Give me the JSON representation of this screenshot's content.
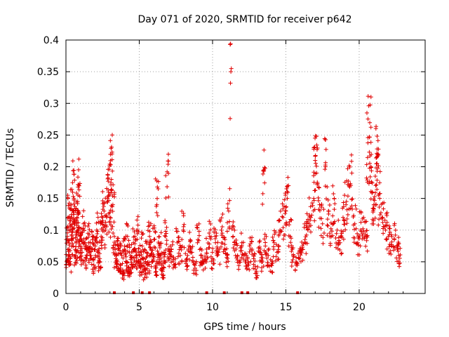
{
  "chart_data": {
    "type": "scatter",
    "title": "Day 071 of 2020, SRMTID for receiver p642",
    "xlabel": "GPS time / hours",
    "ylabel": "SRMTID / TECUs",
    "xlim": [
      0,
      24.5
    ],
    "ylim": [
      0,
      0.4
    ],
    "x_ticks": [
      0,
      5,
      10,
      15,
      20
    ],
    "x_tick_labels": [
      "0",
      "5",
      "10",
      "15",
      "20"
    ],
    "y_ticks": [
      0,
      0.05,
      0.1,
      0.15,
      0.2,
      0.25,
      0.3,
      0.35,
      0.4
    ],
    "y_tick_labels": [
      "0",
      "0.05",
      "0.1",
      "0.15",
      "0.2",
      "0.25",
      "0.3",
      "0.35",
      "0.4"
    ],
    "grid": true,
    "marker": "+",
    "series": [
      {
        "name": "SRMTID",
        "color": "#e00000",
        "points": [
          [
            0.05,
            0.05
          ],
          [
            0.1,
            0.09
          ],
          [
            0.15,
            0.12
          ],
          [
            0.2,
            0.07
          ],
          [
            0.25,
            0.045
          ],
          [
            0.3,
            0.1
          ],
          [
            0.35,
            0.14
          ],
          [
            0.4,
            0.085
          ],
          [
            0.45,
            0.175
          ],
          [
            0.5,
            0.13
          ],
          [
            0.55,
            0.15
          ],
          [
            0.6,
            0.11
          ],
          [
            0.65,
            0.06
          ],
          [
            0.7,
            0.08
          ],
          [
            0.75,
            0.12
          ],
          [
            0.8,
            0.145
          ],
          [
            0.85,
            0.1
          ],
          [
            0.9,
            0.17
          ],
          [
            0.95,
            0.09
          ],
          [
            1.0,
            0.075
          ],
          [
            1.1,
            0.065
          ],
          [
            1.2,
            0.11
          ],
          [
            1.3,
            0.08
          ],
          [
            1.4,
            0.055
          ],
          [
            1.5,
            0.095
          ],
          [
            1.6,
            0.07
          ],
          [
            1.7,
            0.06
          ],
          [
            1.8,
            0.085
          ],
          [
            1.9,
            0.045
          ],
          [
            2.0,
            0.075
          ],
          [
            2.1,
            0.1
          ],
          [
            2.2,
            0.065
          ],
          [
            2.3,
            0.05
          ],
          [
            2.4,
            0.09
          ],
          [
            2.5,
            0.12
          ],
          [
            2.6,
            0.13
          ],
          [
            2.7,
            0.1
          ],
          [
            2.8,
            0.145
          ],
          [
            2.9,
            0.16
          ],
          [
            3.0,
            0.12
          ],
          [
            3.05,
            0.203
          ],
          [
            3.1,
            0.18
          ],
          [
            3.2,
            0.14
          ],
          [
            3.3,
            0.09
          ],
          [
            3.4,
            0.055
          ],
          [
            3.5,
            0.05
          ],
          [
            3.6,
            0.07
          ],
          [
            3.7,
            0.04
          ],
          [
            3.8,
            0.06
          ],
          [
            3.9,
            0.03
          ],
          [
            4.0,
            0.075
          ],
          [
            4.1,
            0.05
          ],
          [
            4.2,
            0.09
          ],
          [
            4.3,
            0.035
          ],
          [
            4.4,
            0.06
          ],
          [
            4.5,
            0.045
          ],
          [
            4.6,
            0.08
          ],
          [
            4.7,
            0.07
          ],
          [
            4.8,
            0.05
          ],
          [
            4.9,
            0.1
          ],
          [
            5.0,
            0.06
          ],
          [
            5.1,
            0.04
          ],
          [
            5.2,
            0.075
          ],
          [
            5.3,
            0.055
          ],
          [
            5.4,
            0.03
          ],
          [
            5.5,
            0.065
          ],
          [
            5.6,
            0.045
          ],
          [
            5.7,
            0.09
          ],
          [
            5.8,
            0.07
          ],
          [
            5.9,
            0.05
          ],
          [
            6.0,
            0.085
          ],
          [
            6.1,
            0.04
          ],
          [
            6.2,
            0.14
          ],
          [
            6.3,
            0.06
          ],
          [
            6.4,
            0.075
          ],
          [
            6.5,
            0.05
          ],
          [
            6.6,
            0.035
          ],
          [
            6.7,
            0.065
          ],
          [
            6.8,
            0.09
          ],
          [
            6.9,
            0.192
          ],
          [
            7.0,
            0.055
          ],
          [
            7.2,
            0.07
          ],
          [
            7.4,
            0.045
          ],
          [
            7.6,
            0.08
          ],
          [
            7.8,
            0.06
          ],
          [
            8.0,
            0.1
          ],
          [
            8.2,
            0.05
          ],
          [
            8.4,
            0.075
          ],
          [
            8.6,
            0.065
          ],
          [
            8.8,
            0.04
          ],
          [
            9.0,
            0.085
          ],
          [
            9.2,
            0.06
          ],
          [
            9.4,
            0.05
          ],
          [
            9.6,
            0.07
          ],
          [
            9.8,
            0.09
          ],
          [
            10.0,
            0.055
          ],
          [
            10.2,
            0.08
          ],
          [
            10.4,
            0.065
          ],
          [
            10.6,
            0.1
          ],
          [
            10.8,
            0.07
          ],
          [
            11.0,
            0.06
          ],
          [
            11.1,
            0.13
          ],
          [
            11.2,
            0.276
          ],
          [
            11.22,
            0.332
          ],
          [
            11.25,
            0.35
          ],
          [
            11.28,
            0.355
          ],
          [
            11.2,
            0.393
          ],
          [
            11.23,
            0.394
          ],
          [
            11.4,
            0.09
          ],
          [
            11.6,
            0.07
          ],
          [
            11.8,
            0.05
          ],
          [
            12.0,
            0.08
          ],
          [
            12.2,
            0.06
          ],
          [
            12.4,
            0.045
          ],
          [
            12.6,
            0.07
          ],
          [
            12.8,
            0.055
          ],
          [
            13.0,
            0.035
          ],
          [
            13.2,
            0.065
          ],
          [
            13.4,
            0.05
          ],
          [
            13.5,
            0.193
          ],
          [
            13.6,
            0.075
          ],
          [
            13.8,
            0.06
          ],
          [
            14.0,
            0.045
          ],
          [
            14.2,
            0.08
          ],
          [
            14.4,
            0.065
          ],
          [
            14.6,
            0.1
          ],
          [
            14.8,
            0.12
          ],
          [
            15.0,
            0.13
          ],
          [
            15.1,
            0.15
          ],
          [
            15.3,
            0.09
          ],
          [
            15.5,
            0.06
          ],
          [
            15.7,
            0.045
          ],
          [
            15.9,
            0.055
          ],
          [
            16.1,
            0.07
          ],
          [
            16.3,
            0.085
          ],
          [
            16.5,
            0.1
          ],
          [
            16.7,
            0.12
          ],
          [
            16.9,
            0.15
          ],
          [
            17.0,
            0.21
          ],
          [
            17.1,
            0.19
          ],
          [
            17.3,
            0.14
          ],
          [
            17.5,
            0.11
          ],
          [
            17.7,
            0.2
          ],
          [
            17.9,
            0.13
          ],
          [
            18.1,
            0.09
          ],
          [
            18.3,
            0.15
          ],
          [
            18.5,
            0.1
          ],
          [
            18.7,
            0.08
          ],
          [
            18.9,
            0.12
          ],
          [
            19.1,
            0.14
          ],
          [
            19.3,
            0.17
          ],
          [
            19.5,
            0.19
          ],
          [
            19.7,
            0.11
          ],
          [
            19.9,
            0.08
          ],
          [
            20.1,
            0.1
          ],
          [
            20.3,
            0.12
          ],
          [
            20.5,
            0.09
          ],
          [
            20.6,
            0.246
          ],
          [
            20.7,
            0.247
          ],
          [
            20.8,
            0.2
          ],
          [
            20.9,
            0.16
          ],
          [
            21.0,
            0.14
          ],
          [
            21.1,
            0.185
          ],
          [
            21.2,
            0.215
          ],
          [
            21.3,
            0.22
          ],
          [
            21.4,
            0.15
          ],
          [
            21.6,
            0.12
          ],
          [
            21.8,
            0.1
          ],
          [
            22.0,
            0.09
          ],
          [
            22.2,
            0.075
          ],
          [
            22.4,
            0.085
          ],
          [
            22.6,
            0.07
          ],
          [
            22.7,
            0.06
          ]
        ]
      }
    ],
    "zero_points_x": [
      3.3,
      4.6,
      5.2,
      5.7,
      9.6,
      10.8,
      12.0,
      12.4,
      15.8
    ]
  }
}
